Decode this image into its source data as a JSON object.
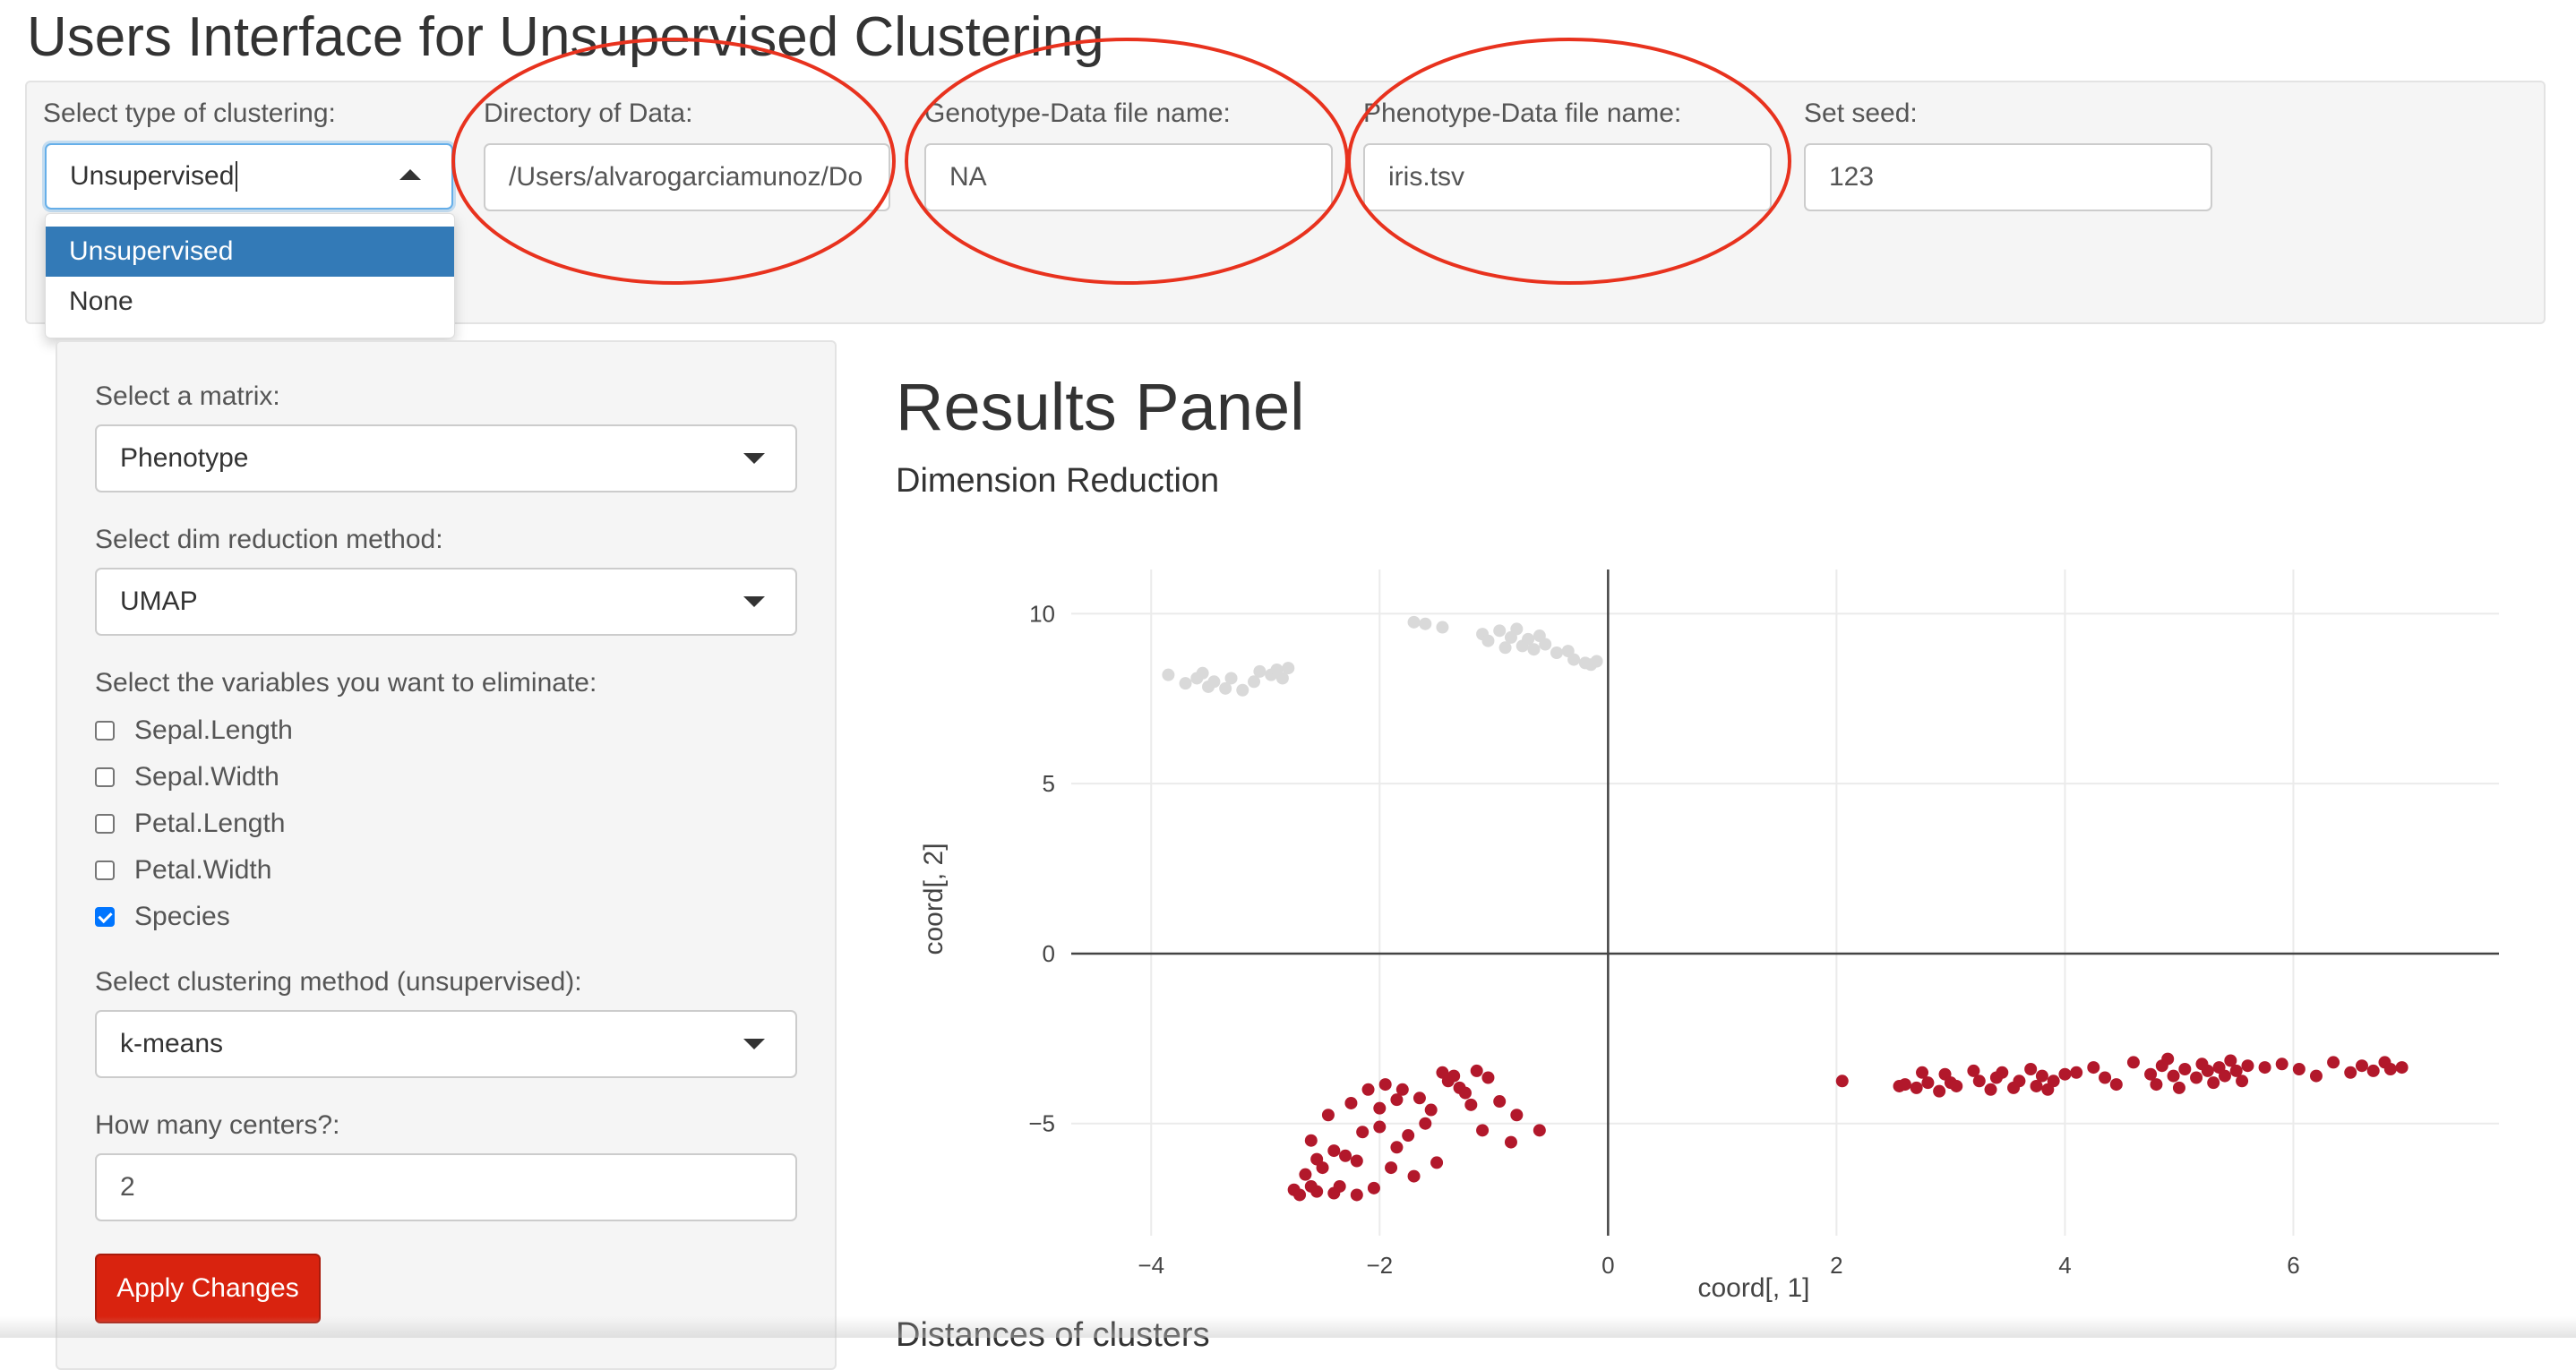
{
  "app_title": "Users Interface for Unsupervised Clustering",
  "top_bar": {
    "cluster_type": {
      "label": "Select type of clustering:",
      "value": "Unsupervised",
      "options": [
        "Unsupervised",
        "None"
      ]
    },
    "directory": {
      "label": "Directory of Data:",
      "value": "/Users/alvarogarciamunoz/Do"
    },
    "genotype_file": {
      "label": "Genotype-Data file name:",
      "value": "NA"
    },
    "phenotype_file": {
      "label": "Phenotype-Data file name:",
      "value": "iris.tsv"
    },
    "seed": {
      "label": "Set seed:",
      "value": "123"
    }
  },
  "sidebar": {
    "matrix": {
      "label": "Select a matrix:",
      "value": "Phenotype"
    },
    "dim_reduction": {
      "label": "Select dim reduction method:",
      "value": "UMAP"
    },
    "variables": {
      "label": "Select the variables you want to eliminate:",
      "items": [
        {
          "label": "Sepal.Length",
          "checked": false
        },
        {
          "label": "Sepal.Width",
          "checked": false
        },
        {
          "label": "Petal.Length",
          "checked": false
        },
        {
          "label": "Petal.Width",
          "checked": false
        },
        {
          "label": "Species",
          "checked": true
        }
      ]
    },
    "cluster_method": {
      "label": "Select clustering method (unsupervised):",
      "value": "k-means"
    },
    "centers": {
      "label": "How many centers?:",
      "value": "2"
    },
    "apply_label": "Apply Changes"
  },
  "results": {
    "title": "Results Panel",
    "dimred_subtitle": "Dimension Reduction",
    "distances_subtitle": "Distances of clusters"
  },
  "colors": {
    "accent": "#337ab7",
    "apply_button": "#d9230f",
    "cluster_red": "#b2182b",
    "cluster_grey": "#d9d9d9",
    "annotation_circle": "#e8321e"
  },
  "chart_data": {
    "type": "scatter",
    "title": "",
    "xlabel": "coord[, 1]",
    "ylabel": "coord[, 2]",
    "xlim": [
      -4.7,
      7.8
    ],
    "ylim": [
      -8.3,
      11.3
    ],
    "xticks": [
      -4,
      -2,
      0,
      2,
      4,
      6
    ],
    "yticks": [
      -5,
      0,
      5,
      10
    ],
    "grid": true,
    "legend": "none",
    "series": [
      {
        "color": "#d9d9d9",
        "points": [
          [
            -3.85,
            8.2
          ],
          [
            -3.7,
            7.95
          ],
          [
            -3.6,
            8.1
          ],
          [
            -3.55,
            8.25
          ],
          [
            -3.5,
            7.85
          ],
          [
            -3.45,
            8.0
          ],
          [
            -3.35,
            7.8
          ],
          [
            -3.3,
            8.1
          ],
          [
            -3.2,
            7.75
          ],
          [
            -3.1,
            8.0
          ],
          [
            -3.05,
            8.3
          ],
          [
            -2.95,
            8.2
          ],
          [
            -2.9,
            8.35
          ],
          [
            -2.85,
            8.1
          ],
          [
            -2.8,
            8.4
          ],
          [
            -1.7,
            9.75
          ],
          [
            -1.6,
            9.7
          ],
          [
            -1.45,
            9.6
          ],
          [
            -1.1,
            9.4
          ],
          [
            -1.05,
            9.2
          ],
          [
            -0.95,
            9.5
          ],
          [
            -0.9,
            9.0
          ],
          [
            -0.85,
            9.3
          ],
          [
            -0.8,
            9.55
          ],
          [
            -0.75,
            9.05
          ],
          [
            -0.7,
            9.25
          ],
          [
            -0.65,
            8.95
          ],
          [
            -0.6,
            9.35
          ],
          [
            -0.55,
            9.1
          ],
          [
            -0.45,
            8.85
          ],
          [
            -0.35,
            8.9
          ],
          [
            -0.3,
            8.65
          ],
          [
            -0.2,
            8.55
          ],
          [
            -0.15,
            8.5
          ],
          [
            -0.1,
            8.6
          ]
        ]
      },
      {
        "color": "#b2182b",
        "points": [
          [
            -2.75,
            -6.95
          ],
          [
            -2.7,
            -7.1
          ],
          [
            -2.65,
            -6.5
          ],
          [
            -2.6,
            -6.85
          ],
          [
            -2.6,
            -5.5
          ],
          [
            -2.55,
            -7.0
          ],
          [
            -2.55,
            -6.05
          ],
          [
            -2.5,
            -6.3
          ],
          [
            -2.45,
            -4.75
          ],
          [
            -2.4,
            -5.8
          ],
          [
            -2.4,
            -7.05
          ],
          [
            -2.35,
            -6.85
          ],
          [
            -2.3,
            -5.95
          ],
          [
            -2.25,
            -4.4
          ],
          [
            -2.2,
            -6.1
          ],
          [
            -2.2,
            -7.1
          ],
          [
            -2.15,
            -5.25
          ],
          [
            -2.1,
            -4.0
          ],
          [
            -2.05,
            -6.9
          ],
          [
            -2.0,
            -4.55
          ],
          [
            -2.0,
            -5.1
          ],
          [
            -1.95,
            -3.85
          ],
          [
            -1.9,
            -6.3
          ],
          [
            -1.85,
            -4.3
          ],
          [
            -1.85,
            -5.7
          ],
          [
            -1.8,
            -4.0
          ],
          [
            -1.75,
            -5.35
          ],
          [
            -1.7,
            -6.55
          ],
          [
            -1.65,
            -4.25
          ],
          [
            -1.6,
            -5.0
          ],
          [
            -1.55,
            -4.6
          ],
          [
            -1.5,
            -6.15
          ],
          [
            -1.45,
            -3.5
          ],
          [
            -1.4,
            -3.75
          ],
          [
            -1.35,
            -3.6
          ],
          [
            -1.3,
            -3.95
          ],
          [
            -1.25,
            -4.1
          ],
          [
            -1.2,
            -4.45
          ],
          [
            -1.15,
            -3.45
          ],
          [
            -1.1,
            -5.2
          ],
          [
            -1.05,
            -3.65
          ],
          [
            -0.95,
            -4.35
          ],
          [
            -0.85,
            -5.55
          ],
          [
            -0.8,
            -4.75
          ],
          [
            -0.6,
            -5.2
          ],
          [
            2.05,
            -3.75
          ],
          [
            2.55,
            -3.9
          ],
          [
            2.6,
            -3.85
          ],
          [
            2.7,
            -3.95
          ],
          [
            2.75,
            -3.5
          ],
          [
            2.8,
            -3.8
          ],
          [
            2.9,
            -4.05
          ],
          [
            2.95,
            -3.55
          ],
          [
            3.0,
            -3.8
          ],
          [
            3.05,
            -3.9
          ],
          [
            3.2,
            -3.45
          ],
          [
            3.25,
            -3.75
          ],
          [
            3.35,
            -4.0
          ],
          [
            3.4,
            -3.65
          ],
          [
            3.45,
            -3.5
          ],
          [
            3.55,
            -3.95
          ],
          [
            3.6,
            -3.75
          ],
          [
            3.7,
            -3.4
          ],
          [
            3.75,
            -3.9
          ],
          [
            3.8,
            -3.6
          ],
          [
            3.85,
            -4.0
          ],
          [
            3.9,
            -3.75
          ],
          [
            4.0,
            -3.55
          ],
          [
            4.1,
            -3.5
          ],
          [
            4.25,
            -3.35
          ],
          [
            4.35,
            -3.65
          ],
          [
            4.45,
            -3.85
          ],
          [
            4.6,
            -3.2
          ],
          [
            4.75,
            -3.55
          ],
          [
            4.8,
            -3.85
          ],
          [
            4.85,
            -3.3
          ],
          [
            4.9,
            -3.1
          ],
          [
            4.95,
            -3.6
          ],
          [
            5.0,
            -3.95
          ],
          [
            5.05,
            -3.4
          ],
          [
            5.15,
            -3.65
          ],
          [
            5.2,
            -3.25
          ],
          [
            5.25,
            -3.45
          ],
          [
            5.3,
            -3.8
          ],
          [
            5.35,
            -3.35
          ],
          [
            5.4,
            -3.6
          ],
          [
            5.45,
            -3.15
          ],
          [
            5.5,
            -3.45
          ],
          [
            5.55,
            -3.75
          ],
          [
            5.6,
            -3.3
          ],
          [
            5.75,
            -3.35
          ],
          [
            5.9,
            -3.25
          ],
          [
            6.05,
            -3.4
          ],
          [
            6.2,
            -3.6
          ],
          [
            6.35,
            -3.2
          ],
          [
            6.5,
            -3.5
          ],
          [
            6.6,
            -3.3
          ],
          [
            6.7,
            -3.45
          ],
          [
            6.8,
            -3.2
          ],
          [
            6.85,
            -3.4
          ],
          [
            6.95,
            -3.35
          ]
        ]
      }
    ]
  }
}
